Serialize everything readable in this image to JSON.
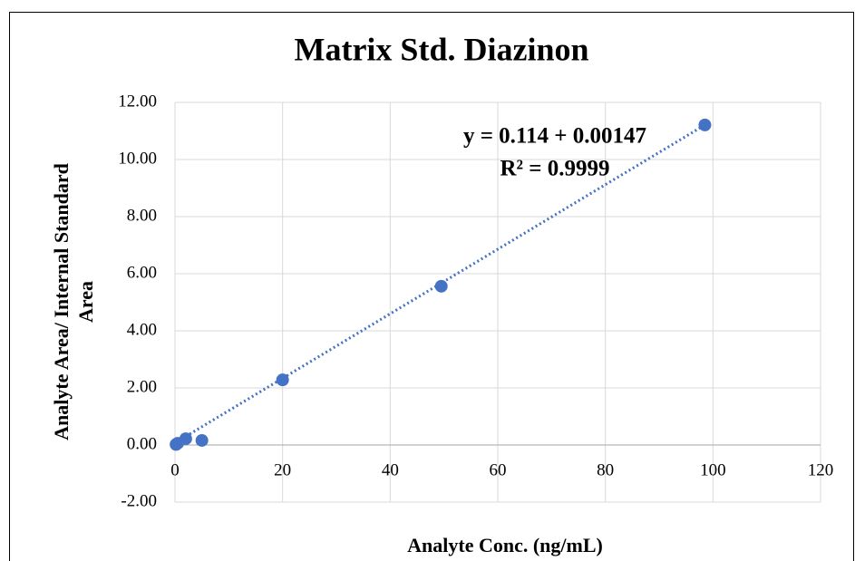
{
  "chart_data": {
    "type": "scatter",
    "title": "Matrix Std. Diazinon",
    "xlabel": "Analyte Conc. (ng/mL)",
    "ylabel": [
      "Analyte Area/ Internal Standard",
      "Area"
    ],
    "series": [
      {
        "name": "Diazinon",
        "color": "#4472c4",
        "x": [
          0.2,
          0.5,
          2,
          5,
          20,
          49.5,
          98.5
        ],
        "values": [
          0.02,
          0.06,
          0.22,
          0.16,
          2.28,
          5.56,
          11.21
        ]
      }
    ],
    "trendline": {
      "color": "#4472c4",
      "x": [
        2,
        98.5
      ],
      "values": [
        0.3,
        11.21
      ]
    },
    "annotations": [
      "y = 0.114 +  0.00147",
      "R² = 0.9999"
    ],
    "xlim": [
      0,
      120
    ],
    "xticks": [
      0,
      20,
      40,
      60,
      80,
      100,
      120
    ],
    "ylim": [
      -2,
      12
    ],
    "yticks": [
      {
        "value": -2,
        "label": "-2.00"
      },
      {
        "value": 0,
        "label": "0.00"
      },
      {
        "value": 2,
        "label": "2.00"
      },
      {
        "value": 4,
        "label": "4.00"
      },
      {
        "value": 6,
        "label": "6.00"
      },
      {
        "value": 8,
        "label": "8.00"
      },
      {
        "value": 10,
        "label": "10.00"
      },
      {
        "value": 12,
        "label": "12.00"
      }
    ],
    "grid": true
  }
}
